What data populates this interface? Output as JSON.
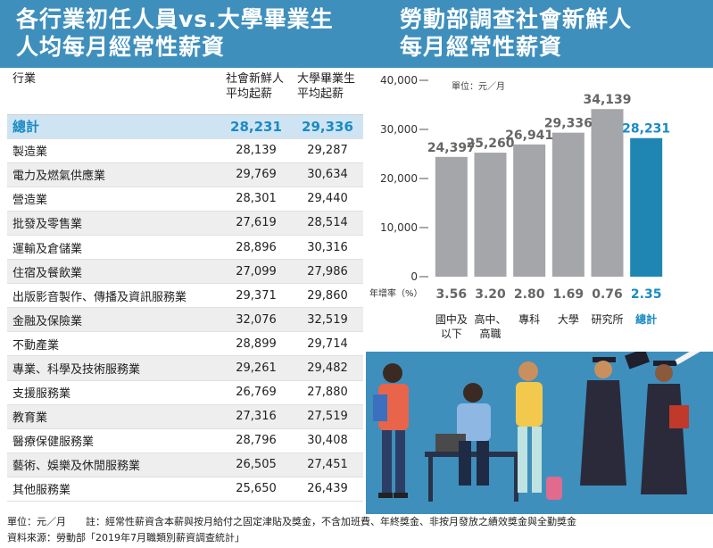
{
  "header": {
    "left_line1": "各行業初任人員vs.大學畢業生",
    "left_line2": "人均每月經常性薪資",
    "right_line1": "勞動部調查社會新鮮人",
    "right_line2": "每月經常性薪資"
  },
  "table": {
    "col1": "行業",
    "col2_line1": "社會新鮮人",
    "col2_line2": "平均起薪",
    "col3_line1": "大學畢業生",
    "col3_line2": "平均起薪",
    "rows": [
      {
        "industry": "總計",
        "fresh": "28,231",
        "grad": "29,336"
      },
      {
        "industry": "製造業",
        "fresh": "28,139",
        "grad": "29,287"
      },
      {
        "industry": "電力及燃氣供應業",
        "fresh": "29,769",
        "grad": "30,634"
      },
      {
        "industry": "營造業",
        "fresh": "28,301",
        "grad": "29,440"
      },
      {
        "industry": "批發及零售業",
        "fresh": "27,619",
        "grad": "28,514"
      },
      {
        "industry": "運輸及倉儲業",
        "fresh": "28,896",
        "grad": "30,316"
      },
      {
        "industry": "住宿及餐飲業",
        "fresh": "27,099",
        "grad": "27,986"
      },
      {
        "industry": "出版影音製作、傳播及資訊服務業",
        "fresh": "29,371",
        "grad": "29,860"
      },
      {
        "industry": "金融及保險業",
        "fresh": "32,076",
        "grad": "32,519"
      },
      {
        "industry": "不動產業",
        "fresh": "28,899",
        "grad": "29,714"
      },
      {
        "industry": "專業、科學及技術服務業",
        "fresh": "29,261",
        "grad": "29,482"
      },
      {
        "industry": "支援服務業",
        "fresh": "26,769",
        "grad": "27,880"
      },
      {
        "industry": "教育業",
        "fresh": "27,316",
        "grad": "27,519"
      },
      {
        "industry": "醫療保健服務業",
        "fresh": "28,796",
        "grad": "30,408"
      },
      {
        "industry": "藝術、娛樂及休閒服務業",
        "fresh": "26,505",
        "grad": "27,451"
      },
      {
        "industry": "其他服務業",
        "fresh": "25,650",
        "grad": "26,439"
      }
    ]
  },
  "chart_data": {
    "type": "bar",
    "unit_label": "單位：元／月",
    "categories": [
      {
        "line1": "國中及",
        "line2": "以下"
      },
      {
        "line1": "高中、",
        "line2": "高職"
      },
      {
        "line1": "專科",
        "line2": ""
      },
      {
        "line1": "大學",
        "line2": ""
      },
      {
        "line1": "研究所",
        "line2": ""
      },
      {
        "line1": "總計",
        "line2": ""
      }
    ],
    "values": [
      24397,
      25260,
      26941,
      29336,
      34139,
      28231
    ],
    "value_labels": [
      "24,397",
      "25,260",
      "26,941",
      "29,336",
      "34,139",
      "28,231"
    ],
    "growth_label": "年增率（%）",
    "growth": [
      "3.56",
      "3.20",
      "2.80",
      "1.69",
      "0.76",
      "2.35"
    ],
    "yticks": [
      "40,000",
      "30,000",
      "20,000",
      "10,000",
      "0"
    ],
    "ytick_values": [
      40000,
      30000,
      20000,
      10000,
      0
    ],
    "ylim": [
      0,
      40000
    ],
    "highlight_index": 5,
    "colors": {
      "bar": "#a4a6a9",
      "highlight": "#1f86b3",
      "highlight_text": "#1a8ac4",
      "text": "#666666"
    }
  },
  "footer": {
    "note": "單位：元／月　　註：經常性薪資含本薪與按月給付之固定津貼及獎金，不含加班費、年終獎金、非按月發放之績效獎金與全勤獎金",
    "source": "資料來源：勞動部「2019年7月職類別薪資調查統計」"
  }
}
